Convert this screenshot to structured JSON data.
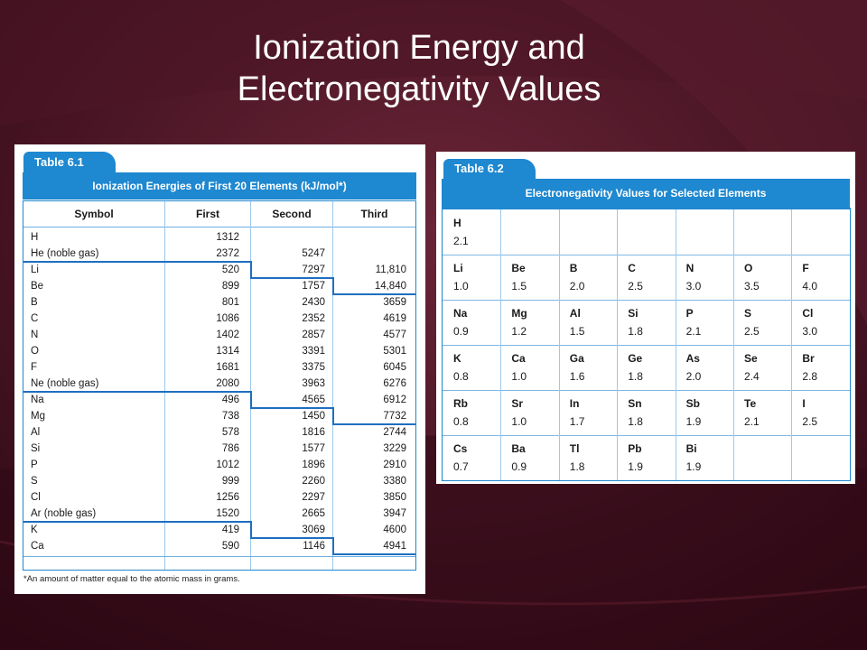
{
  "slide": {
    "title_line1": "Ionization Energy and",
    "title_line2": "Electronegativity Values"
  },
  "colors": {
    "background": "#3a0f1c",
    "table_blue": "#1e88d0",
    "title_text": "#ffffff"
  },
  "table1": {
    "label": "Table 6.1",
    "title": "Ionization Energies of First 20 Elements (kJ/mol*)",
    "headers": [
      "Symbol",
      "First",
      "Second",
      "Third"
    ],
    "rows": [
      {
        "symbol": "H",
        "first": "1312",
        "second": "",
        "third": ""
      },
      {
        "symbol": "He (noble gas)",
        "first": "2372",
        "second": "5247",
        "third": ""
      },
      {
        "symbol": "Li",
        "first": "520",
        "second": "7297",
        "third": "11,810"
      },
      {
        "symbol": "Be",
        "first": "899",
        "second": "1757",
        "third": "14,840"
      },
      {
        "symbol": "B",
        "first": "801",
        "second": "2430",
        "third": "3659"
      },
      {
        "symbol": "C",
        "first": "1086",
        "second": "2352",
        "third": "4619"
      },
      {
        "symbol": "N",
        "first": "1402",
        "second": "2857",
        "third": "4577"
      },
      {
        "symbol": "O",
        "first": "1314",
        "second": "3391",
        "third": "5301"
      },
      {
        "symbol": "F",
        "first": "1681",
        "second": "3375",
        "third": "6045"
      },
      {
        "symbol": "Ne (noble gas)",
        "first": "2080",
        "second": "3963",
        "third": "6276"
      },
      {
        "symbol": "Na",
        "first": "496",
        "second": "4565",
        "third": "6912"
      },
      {
        "symbol": "Mg",
        "first": "738",
        "second": "1450",
        "third": "7732"
      },
      {
        "symbol": "Al",
        "first": "578",
        "second": "1816",
        "third": "2744"
      },
      {
        "symbol": "Si",
        "first": "786",
        "second": "1577",
        "third": "3229"
      },
      {
        "symbol": "P",
        "first": "1012",
        "second": "1896",
        "third": "2910"
      },
      {
        "symbol": "S",
        "first": "999",
        "second": "2260",
        "third": "3380"
      },
      {
        "symbol": "Cl",
        "first": "1256",
        "second": "2297",
        "third": "3850"
      },
      {
        "symbol": "Ar (noble gas)",
        "first": "1520",
        "second": "2665",
        "third": "3947"
      },
      {
        "symbol": "K",
        "first": "419",
        "second": "3069",
        "third": "4600"
      },
      {
        "symbol": "Ca",
        "first": "590",
        "second": "1146",
        "third": "4941"
      }
    ],
    "footnote": "*An amount of matter equal to the atomic mass in grams."
  },
  "table2": {
    "label": "Table 6.2",
    "title": "Electronegativity Values for Selected Elements",
    "rows": [
      [
        {
          "s": "H",
          "v": "2.1"
        },
        null,
        null,
        null,
        null,
        null,
        null
      ],
      [
        {
          "s": "Li",
          "v": "1.0"
        },
        {
          "s": "Be",
          "v": "1.5"
        },
        {
          "s": "B",
          "v": "2.0"
        },
        {
          "s": "C",
          "v": "2.5"
        },
        {
          "s": "N",
          "v": "3.0"
        },
        {
          "s": "O",
          "v": "3.5"
        },
        {
          "s": "F",
          "v": "4.0"
        }
      ],
      [
        {
          "s": "Na",
          "v": "0.9"
        },
        {
          "s": "Mg",
          "v": "1.2"
        },
        {
          "s": "Al",
          "v": "1.5"
        },
        {
          "s": "Si",
          "v": "1.8"
        },
        {
          "s": "P",
          "v": "2.1"
        },
        {
          "s": "S",
          "v": "2.5"
        },
        {
          "s": "Cl",
          "v": "3.0"
        }
      ],
      [
        {
          "s": "K",
          "v": "0.8"
        },
        {
          "s": "Ca",
          "v": "1.0"
        },
        {
          "s": "Ga",
          "v": "1.6"
        },
        {
          "s": "Ge",
          "v": "1.8"
        },
        {
          "s": "As",
          "v": "2.0"
        },
        {
          "s": "Se",
          "v": "2.4"
        },
        {
          "s": "Br",
          "v": "2.8"
        }
      ],
      [
        {
          "s": "Rb",
          "v": "0.8"
        },
        {
          "s": "Sr",
          "v": "1.0"
        },
        {
          "s": "In",
          "v": "1.7"
        },
        {
          "s": "Sn",
          "v": "1.8"
        },
        {
          "s": "Sb",
          "v": "1.9"
        },
        {
          "s": "Te",
          "v": "2.1"
        },
        {
          "s": "I",
          "v": "2.5"
        }
      ],
      [
        {
          "s": "Cs",
          "v": "0.7"
        },
        {
          "s": "Ba",
          "v": "0.9"
        },
        {
          "s": "Tl",
          "v": "1.8"
        },
        {
          "s": "Pb",
          "v": "1.9"
        },
        {
          "s": "Bi",
          "v": "1.9"
        },
        null,
        null
      ]
    ]
  }
}
